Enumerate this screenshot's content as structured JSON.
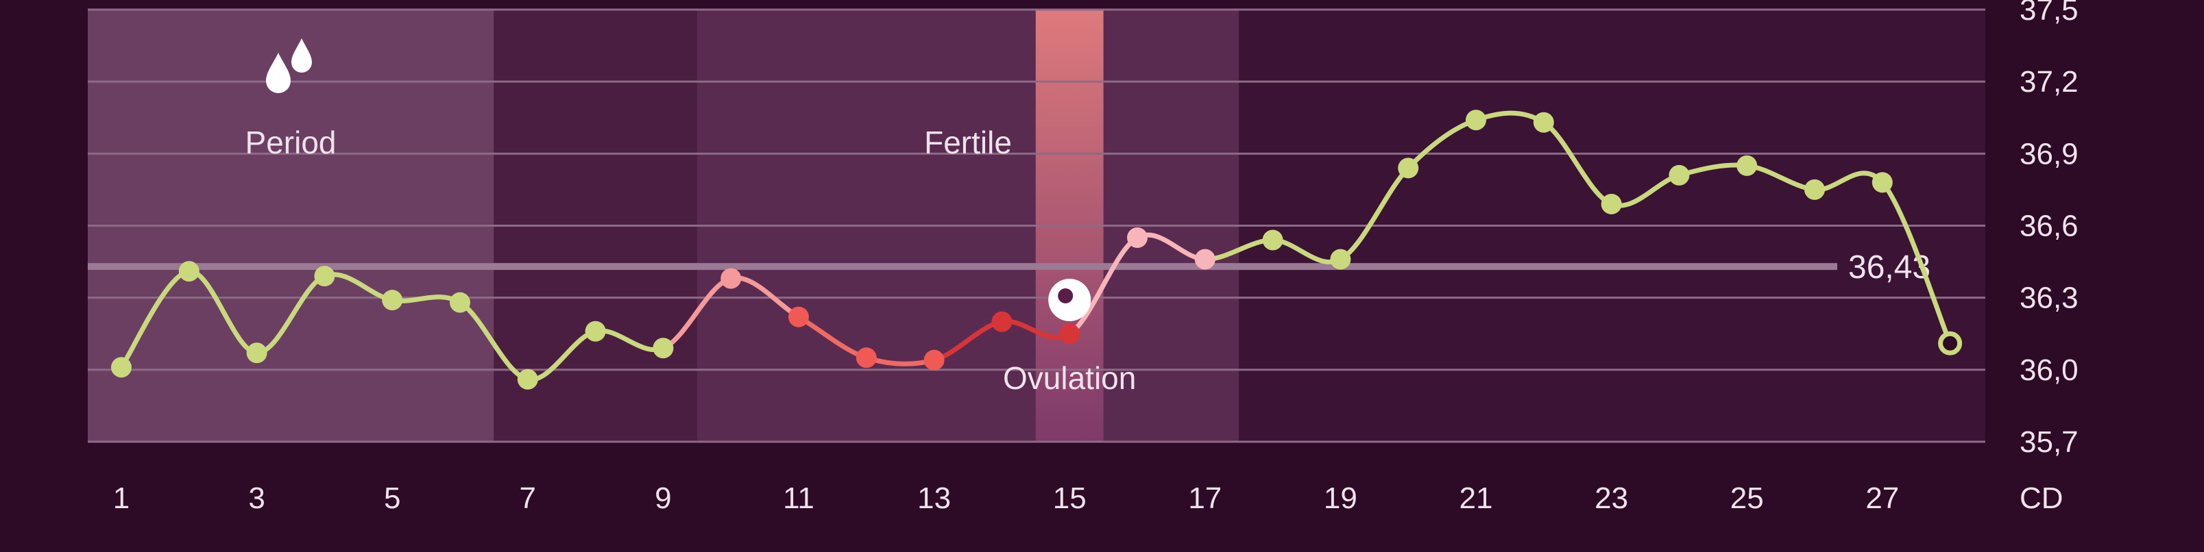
{
  "chart_data": {
    "type": "line",
    "title": "",
    "xlabel": "CD",
    "ylabel": "",
    "xlim": [
      0.5,
      28.5
    ],
    "ylim": [
      35.7,
      37.5
    ],
    "y_ticks": [
      "35,7",
      "36,0",
      "36,3",
      "36,6",
      "36,9",
      "37,2",
      "37,5"
    ],
    "x_ticks": [
      "1",
      "3",
      "5",
      "7",
      "9",
      "11",
      "13",
      "15",
      "17",
      "19",
      "21",
      "23",
      "25",
      "27"
    ],
    "grid": true,
    "coverline": {
      "value": 36.43,
      "label": "36,43"
    },
    "phases": [
      {
        "name": "period",
        "label": "Period",
        "from": 1,
        "to": 6,
        "icon": "blood-drops-icon"
      },
      {
        "name": "fertile",
        "label": "Fertile",
        "from": 10,
        "to": 17
      },
      {
        "name": "ovulation",
        "label": "Ovulation",
        "day": 15,
        "icon": "egg-icon"
      }
    ],
    "series": [
      {
        "x": [
          1,
          2,
          3,
          4,
          5,
          6,
          7,
          8,
          9,
          10,
          11,
          12,
          13,
          14,
          15,
          16,
          17,
          18,
          19,
          20,
          21,
          22,
          23,
          24,
          25,
          26,
          27,
          28
        ],
        "values": [
          36.01,
          36.41,
          36.07,
          36.39,
          36.29,
          36.28,
          35.96,
          36.16,
          36.09,
          36.38,
          36.22,
          36.05,
          36.04,
          36.2,
          36.15,
          36.55,
          36.46,
          36.54,
          36.46,
          36.84,
          37.04,
          37.03,
          36.69,
          36.81,
          36.85,
          36.75,
          36.78,
          36.11
        ],
        "last_point_open": true
      }
    ],
    "colors": {
      "background": "#2d0a26",
      "plot_background": "#3a1335",
      "period_band": "#6b3f62",
      "period_gap": "#4a1e41",
      "fertile_band": "#5a2b50",
      "ovulation_band_top": "#de7a7c",
      "ovulation_band_bottom": "#7e3a6a",
      "line": "#c9d97c",
      "point": "#c9d97c",
      "fertile_early": "#f59a9a",
      "fertile_peak": "#d83538",
      "post_ovulation": "#f8b5b9",
      "coverline": "#9a7a94",
      "grid": "#8d6a86",
      "text": "#efe3ec"
    }
  }
}
